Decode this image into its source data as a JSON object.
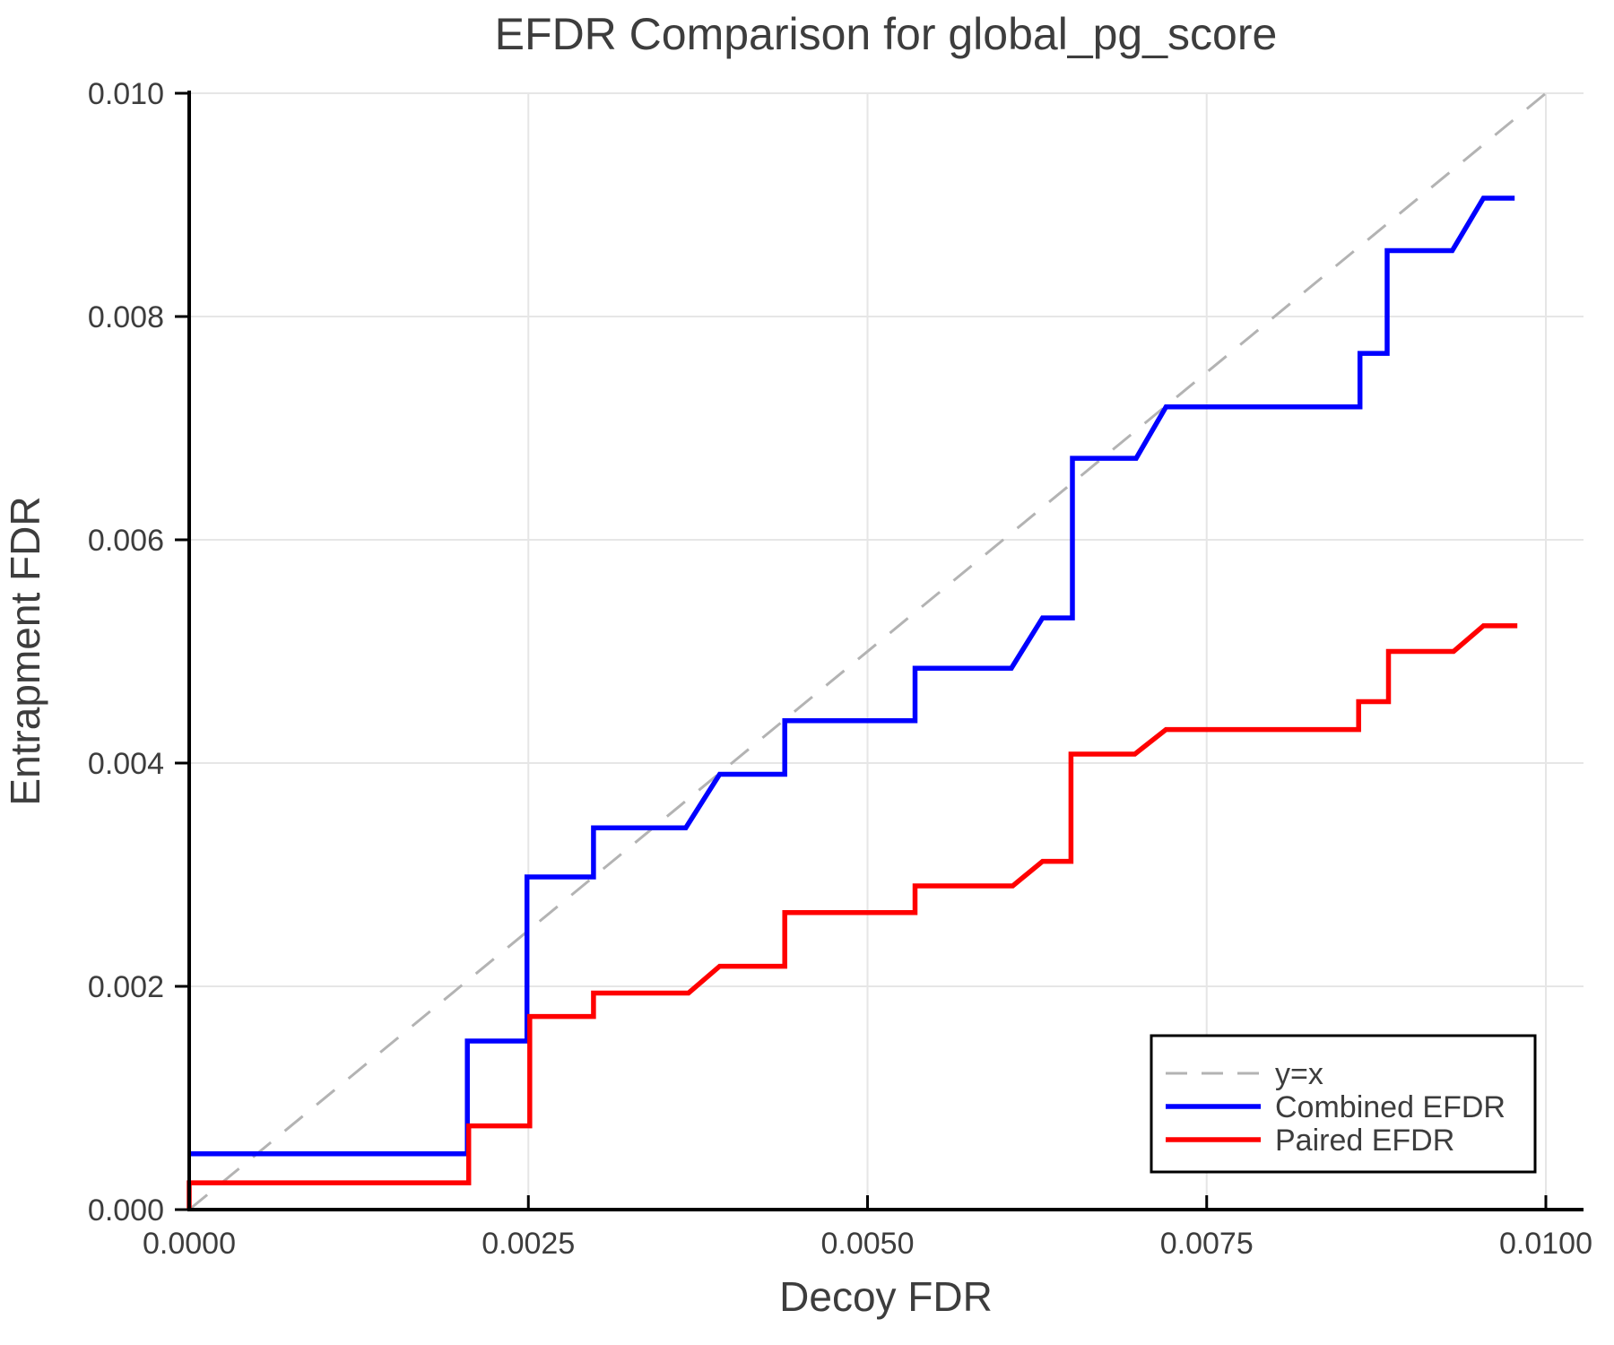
{
  "chart_data": {
    "type": "line",
    "title": "EFDR Comparison for global_pg_score",
    "xlabel": "Decoy FDR",
    "ylabel": "Entrapment FDR",
    "xlim": [
      0.0,
      0.010278
    ],
    "ylim": [
      0.0,
      0.01
    ],
    "grid": true,
    "legend_position": "lower right",
    "x_ticks": [
      0.0,
      0.0025,
      0.005,
      0.0075,
      0.01
    ],
    "x_tick_labels": [
      "0.0000",
      "0.0025",
      "0.0050",
      "0.0075",
      "0.0100"
    ],
    "y_ticks": [
      0.0,
      0.002,
      0.004,
      0.006,
      0.008,
      0.01
    ],
    "y_tick_labels": [
      "0.000",
      "0.002",
      "0.004",
      "0.006",
      "0.008",
      "0.010"
    ],
    "colors": {
      "identity": "#b3b3b3",
      "combined": "#0000ff",
      "paired": "#ff0000",
      "grid": "#e6e6e6",
      "spine": "#000000",
      "text": "#3d3d3d"
    },
    "series": [
      {
        "name": "y=x",
        "style": "dashed",
        "color": "#b3b3b3",
        "points": [
          [
            0.0,
            0.0
          ],
          [
            0.01,
            0.01
          ]
        ]
      },
      {
        "name": "Combined EFDR",
        "style": "solid",
        "color": "#0000ff",
        "points": [
          [
            0.0,
            0.0005
          ],
          [
            0.00205,
            0.0005
          ],
          [
            0.00205,
            0.00151
          ],
          [
            0.00249,
            0.00151
          ],
          [
            0.00249,
            0.00298
          ],
          [
            0.00298,
            0.00298
          ],
          [
            0.00298,
            0.00342
          ],
          [
            0.00366,
            0.00342
          ],
          [
            0.00391,
            0.0039
          ],
          [
            0.00439,
            0.0039
          ],
          [
            0.00439,
            0.00438
          ],
          [
            0.00535,
            0.00438
          ],
          [
            0.00535,
            0.00485
          ],
          [
            0.00606,
            0.00485
          ],
          [
            0.00629,
            0.0053
          ],
          [
            0.00651,
            0.0053
          ],
          [
            0.00651,
            0.00673
          ],
          [
            0.00698,
            0.00673
          ],
          [
            0.0072,
            0.00719
          ],
          [
            0.00863,
            0.00719
          ],
          [
            0.00863,
            0.00767
          ],
          [
            0.00883,
            0.00767
          ],
          [
            0.00883,
            0.00859
          ],
          [
            0.00931,
            0.00859
          ],
          [
            0.00954,
            0.00906
          ],
          [
            0.00977,
            0.00906
          ]
        ]
      },
      {
        "name": "Paired EFDR",
        "style": "solid",
        "color": "#ff0000",
        "points": [
          [
            0.0,
            0.0
          ],
          [
            0.0,
            0.00024
          ],
          [
            0.00206,
            0.00024
          ],
          [
            0.00206,
            0.00075
          ],
          [
            0.00251,
            0.00075
          ],
          [
            0.00251,
            0.00173
          ],
          [
            0.00298,
            0.00173
          ],
          [
            0.00298,
            0.00194
          ],
          [
            0.00368,
            0.00194
          ],
          [
            0.00391,
            0.00218
          ],
          [
            0.00439,
            0.00218
          ],
          [
            0.00439,
            0.00266
          ],
          [
            0.00535,
            0.00266
          ],
          [
            0.00535,
            0.0029
          ],
          [
            0.00607,
            0.0029
          ],
          [
            0.00629,
            0.00312
          ],
          [
            0.0065,
            0.00312
          ],
          [
            0.0065,
            0.00408
          ],
          [
            0.00697,
            0.00408
          ],
          [
            0.0072,
            0.0043
          ],
          [
            0.00862,
            0.0043
          ],
          [
            0.00862,
            0.00455
          ],
          [
            0.00884,
            0.00455
          ],
          [
            0.00884,
            0.005
          ],
          [
            0.00932,
            0.005
          ],
          [
            0.00954,
            0.00523
          ],
          [
            0.00979,
            0.00523
          ]
        ]
      }
    ]
  }
}
